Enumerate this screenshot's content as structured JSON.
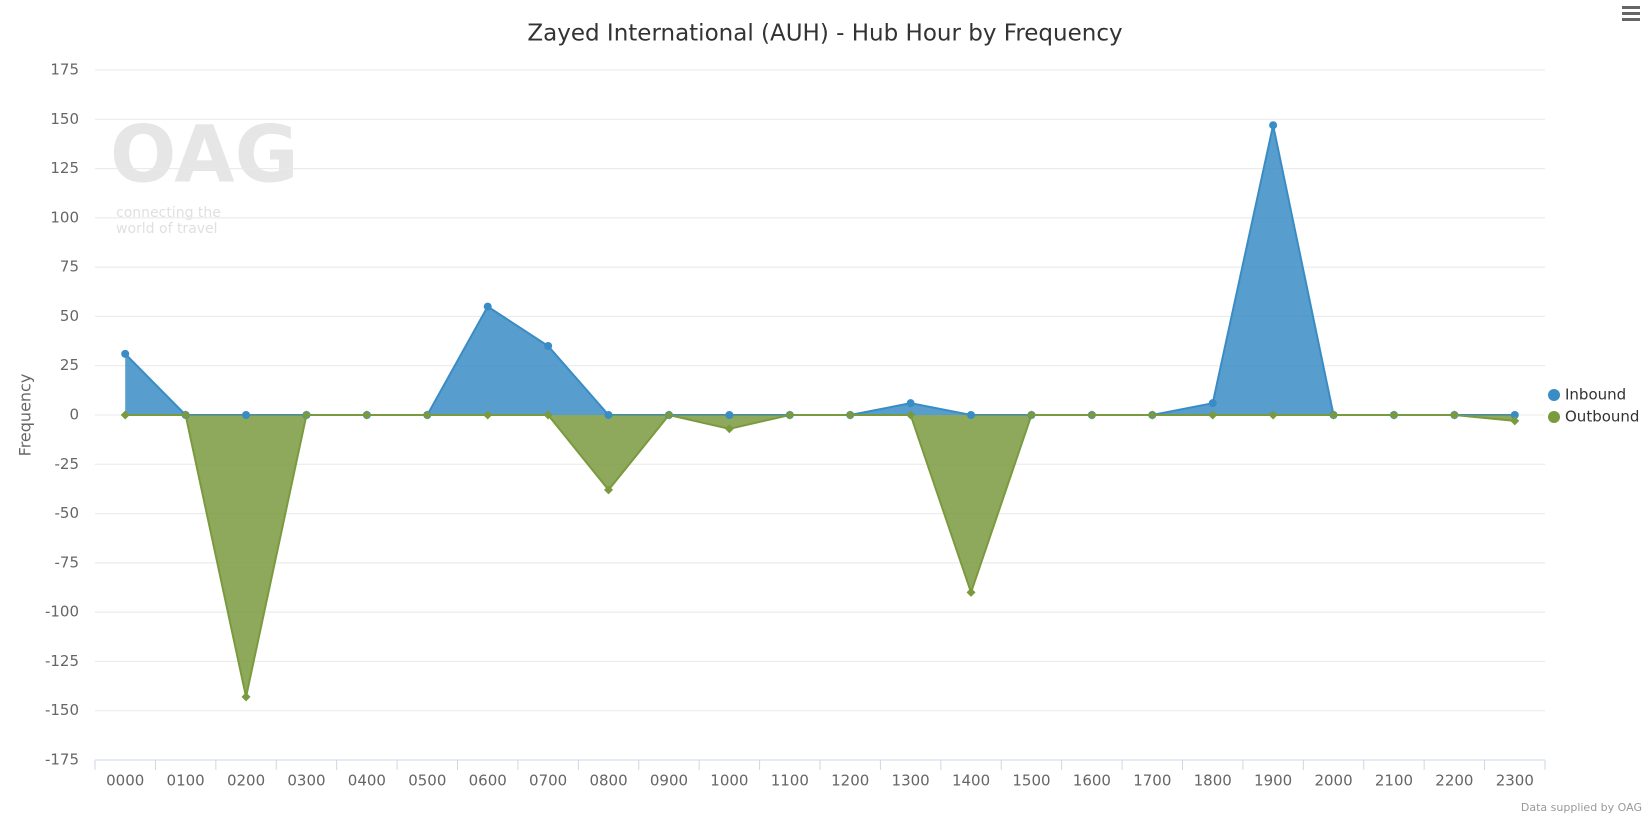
{
  "chart_data": {
    "type": "area",
    "title": "Zayed International (AUH) - Hub Hour by Frequency",
    "y_axis_label": "Frequency",
    "watermark": {
      "logo": "OAG",
      "tagline_1": "connecting the",
      "tagline_2": "world of travel"
    },
    "credits": "Data supplied by OAG",
    "categories": [
      "0000",
      "0100",
      "0200",
      "0300",
      "0400",
      "0500",
      "0600",
      "0700",
      "0800",
      "0900",
      "1000",
      "1100",
      "1200",
      "1300",
      "1400",
      "1500",
      "1600",
      "1700",
      "1800",
      "1900",
      "2000",
      "2100",
      "2200",
      "2300"
    ],
    "series": [
      {
        "name": "Inbound",
        "color": "#3a8cc4",
        "marker": "circle",
        "values": [
          31,
          0,
          0,
          0,
          0,
          0,
          55,
          35,
          0,
          0,
          0,
          0,
          0,
          6,
          0,
          0,
          0,
          0,
          6,
          147,
          0,
          0,
          0,
          0
        ]
      },
      {
        "name": "Outbound",
        "color": "#7a9a3e",
        "marker": "diamond",
        "values": [
          0,
          0,
          -143,
          0,
          0,
          0,
          0,
          0,
          -38,
          0,
          -7,
          0,
          0,
          0,
          -90,
          0,
          0,
          0,
          0,
          0,
          0,
          0,
          0,
          -3
        ]
      }
    ],
    "ylim": [
      -175,
      175
    ],
    "yticks": [
      -175,
      -150,
      -125,
      -100,
      -75,
      -50,
      -25,
      0,
      25,
      50,
      75,
      100,
      125,
      150,
      175
    ],
    "grid": true,
    "legend": "right"
  }
}
